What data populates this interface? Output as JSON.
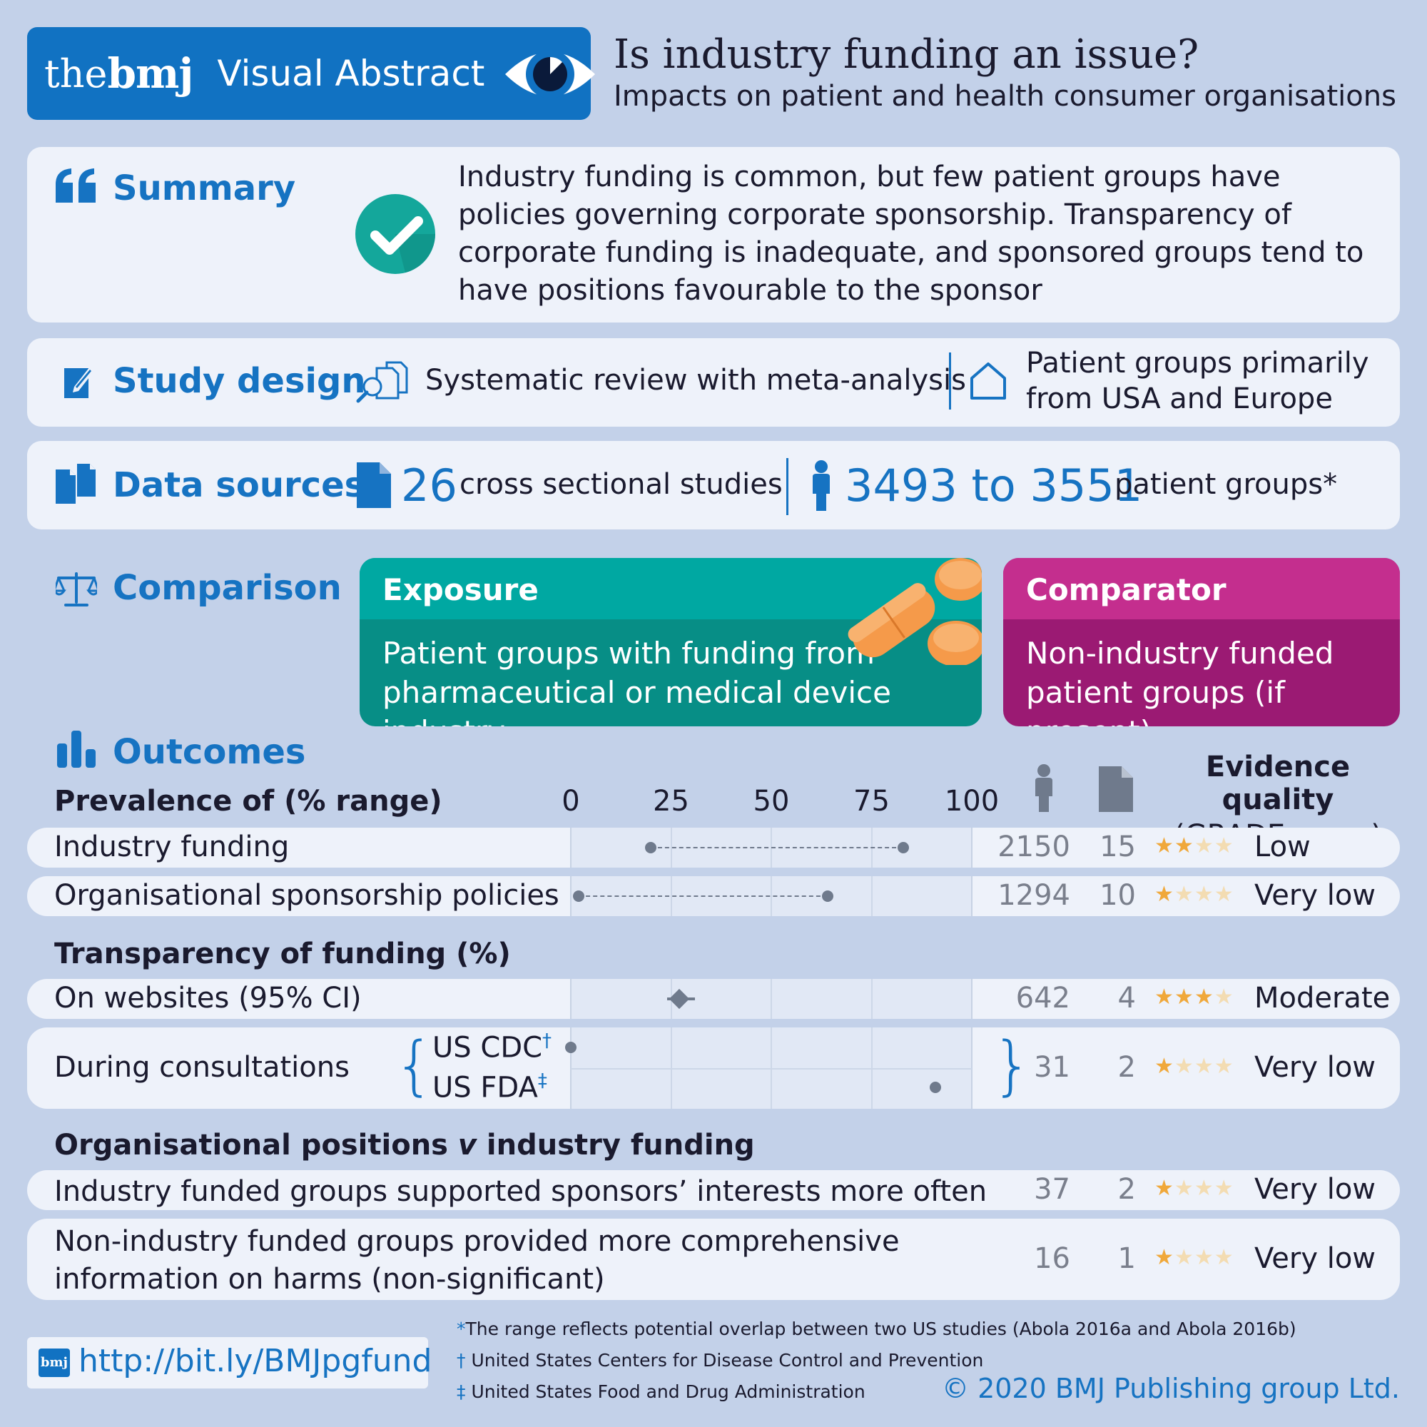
{
  "header": {
    "brand_the": "the",
    "brand_bmj": "bmj",
    "brand_va": "Visual Abstract",
    "title": "Is industry funding an issue?",
    "subtitle": "Impacts on patient and health consumer organisations"
  },
  "summary": {
    "label": "Summary",
    "text": "Industry funding is common, but few patient groups have policies governing corporate sponsorship. Transparency of corporate funding is inadequate, and sponsored groups tend to have positions favourable to the sponsor"
  },
  "design": {
    "label": "Study design",
    "method": "Systematic review with meta-analysis",
    "population_line1": "Patient groups primarily",
    "population_line2": "from USA and Europe"
  },
  "sources": {
    "label": "Data sources",
    "studies_count": "26",
    "studies_text": "cross sectional studies",
    "groups_count": "3493 to 3551",
    "groups_text": "patient groups*"
  },
  "comparison": {
    "label": "Comparison",
    "exposure_title": "Exposure",
    "exposure_line1": "Patient groups with funding from",
    "exposure_line2": "pharmaceutical or medical device industry",
    "comparator_title": "Comparator",
    "comparator_line1": "Non-industry funded",
    "comparator_line2": "patient groups (if present)"
  },
  "outcomes": {
    "label": "Outcomes",
    "prevalence_header": "Prevalence of (% range)",
    "axis_ticks": [
      "0",
      "25",
      "50",
      "75",
      "100"
    ],
    "evidence_header_line1": "Evidence quality",
    "evidence_header_line2": "(GRADE score)",
    "rows": [
      {
        "label": "Industry funding",
        "range": [
          20,
          83
        ],
        "participants": "2150",
        "studies": "15",
        "stars": 2,
        "grade": "Low"
      },
      {
        "label": "Organisational sponsorship policies",
        "range": [
          2,
          64
        ],
        "participants": "1294",
        "studies": "10",
        "stars": 1,
        "grade": "Very low"
      }
    ],
    "transparency_header": "Transparency of funding (%)",
    "websites": {
      "label": "On websites (95% CI)",
      "estimate": 27,
      "ci": [
        24,
        31
      ],
      "participants": "642",
      "studies": "4",
      "stars": 3,
      "grade": "Moderate"
    },
    "consultations": {
      "label": "During consultations",
      "cdc_label": "US CDC",
      "cdc_mark": "†",
      "cdc_value": 0,
      "fda_label": "US FDA",
      "fda_mark": "‡",
      "fda_value": 91,
      "participants": "31",
      "studies": "2",
      "stars": 1,
      "grade": "Very low"
    },
    "positions_header_a": "Organisational positions ",
    "positions_header_v": "v",
    "positions_header_b": " industry funding",
    "positions": [
      {
        "line1": "Industry funded groups supported sponsors’ interests more often",
        "line2": "",
        "participants": "37",
        "studies": "2",
        "stars": 1,
        "grade": "Very low"
      },
      {
        "line1": "Non-industry funded groups provided more comprehensive",
        "line2": "information on harms (non-significant)",
        "participants": "16",
        "studies": "1",
        "stars": 1,
        "grade": "Very low"
      }
    ]
  },
  "footer": {
    "logo_text": "bmj",
    "url": "http://bit.ly/BMJpgfund",
    "note1_mark": "*",
    "note1": "The range reflects potential overlap between two US studies (Abola 2016a and Abola 2016b)",
    "note2_mark": "†",
    "note2": "United States Centers for Disease Control and Prevention",
    "note3_mark": "‡",
    "note3": "United States Food and Drug Administration",
    "copyright": "© 2020 BMJ Publishing group Ltd."
  },
  "colors": {
    "background": "#c3d1e9",
    "brand_blue": "#1172c2",
    "accent_blue": "#1673c2",
    "exposure_teal": "#00a8a2",
    "comparator_magenta": "#c42e8e",
    "star": "#f0a83a",
    "check_teal": "#14a79b"
  }
}
